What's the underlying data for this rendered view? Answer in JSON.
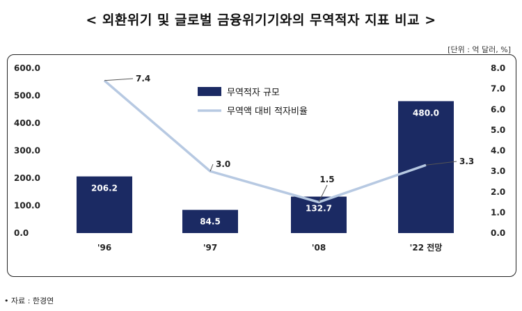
{
  "header": {
    "title": "< 외환위기 및 글로벌 금융위기기와의 무역적자 지표 비교 >",
    "unit": "[단위 : 억 달러, %]"
  },
  "footer": {
    "source": "• 자료 : 한경연"
  },
  "colors": {
    "bar": "#1b2a63",
    "line": "#b7c9e2",
    "text": "#222222"
  },
  "chart_data": {
    "type": "bar",
    "categories": [
      "'96",
      "'97",
      "'08",
      "'22 전망"
    ],
    "series": [
      {
        "name": "무역적자 규모",
        "type": "bar",
        "axis": "left",
        "values": [
          206.2,
          84.5,
          132.7,
          480.0
        ],
        "labels": [
          "206.2",
          "84.5",
          "132.7",
          "480.0"
        ]
      },
      {
        "name": "무역액 대비 적자비율",
        "type": "line",
        "axis": "right",
        "values": [
          7.4,
          3.0,
          1.5,
          3.3
        ],
        "labels": [
          "7.4",
          "3.0",
          "1.5",
          "3.3"
        ]
      }
    ],
    "y_left": {
      "ylim": [
        0,
        600
      ],
      "ticks": [
        "0.0",
        "100.0",
        "200.0",
        "300.0",
        "400.0",
        "500.0",
        "600.0"
      ]
    },
    "y_right": {
      "ylim": [
        0,
        8
      ],
      "ticks": [
        "0.0",
        "1.0",
        "2.0",
        "3.0",
        "4.0",
        "5.0",
        "6.0",
        "7.0",
        "8.0"
      ]
    },
    "legend": "top-center",
    "grid": false
  }
}
